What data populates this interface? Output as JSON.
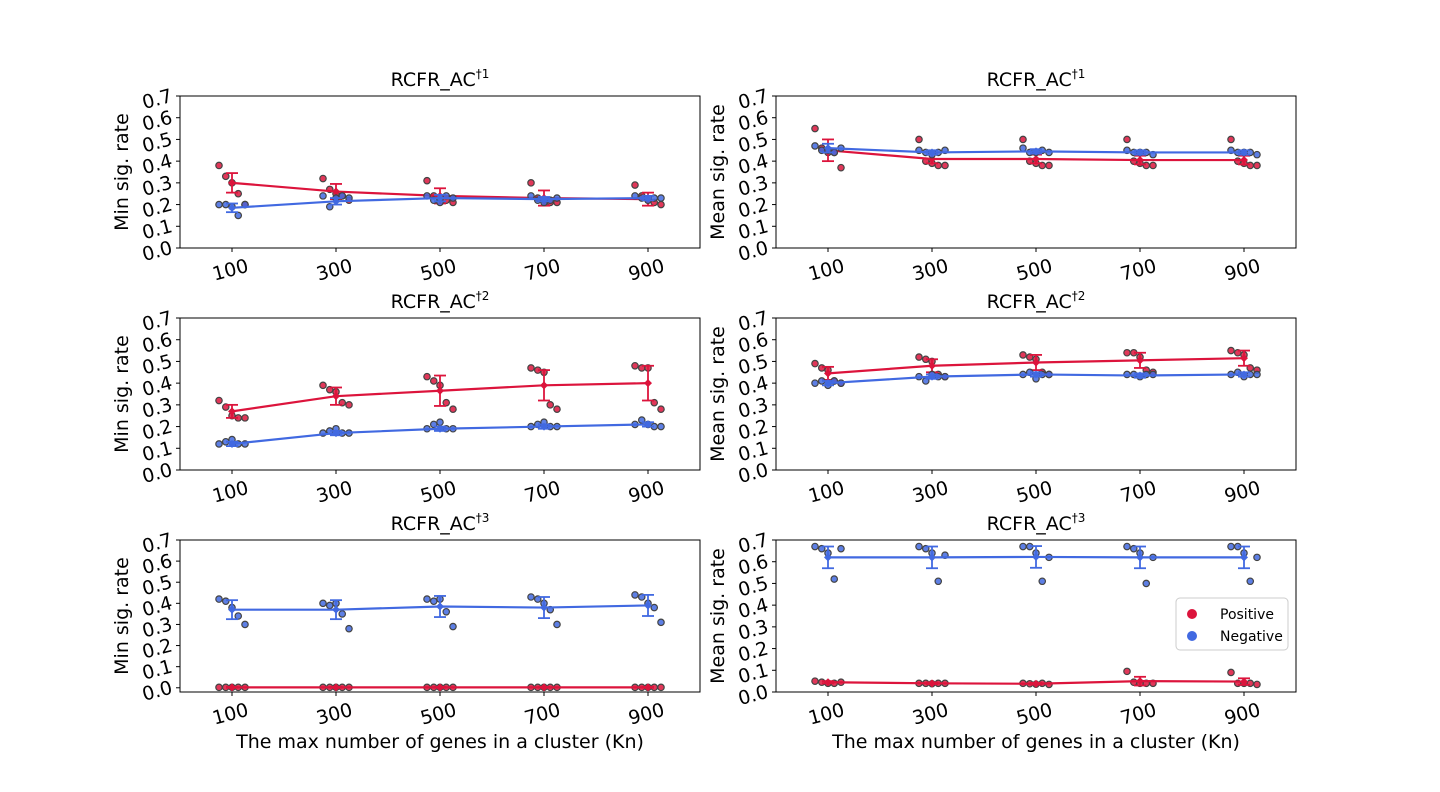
{
  "legend": {
    "items": [
      {
        "label": "Positive",
        "color": "#dc143c"
      },
      {
        "label": "Negative",
        "color": "#4169e1"
      }
    ]
  },
  "chart_data": [
    {
      "type": "scatter",
      "title": "RCFR_AC",
      "title_sup": "†1",
      "xlabel": "",
      "ylabel": "Min sig. rate",
      "categories": [
        "100",
        "300",
        "500",
        "700",
        "900"
      ],
      "ylim": [
        0.0,
        0.7
      ],
      "yticks": [
        "0.0",
        "0.1",
        "0.2",
        "0.3",
        "0.4",
        "0.5",
        "0.6",
        "0.7"
      ],
      "series": [
        {
          "name": "Positive",
          "color": "#dc143c",
          "mean": [
            0.3,
            0.26,
            0.24,
            0.23,
            0.225
          ],
          "err": [
            0.045,
            0.035,
            0.035,
            0.035,
            0.03
          ],
          "points": [
            [
              0.38,
              0.33,
              0.3,
              0.25,
              0.2
            ],
            [
              0.32,
              0.27,
              0.25,
              0.24,
              0.22
            ],
            [
              0.31,
              0.24,
              0.23,
              0.22,
              0.21
            ],
            [
              0.3,
              0.23,
              0.22,
              0.21,
              0.21
            ],
            [
              0.29,
              0.24,
              0.22,
              0.21,
              0.2
            ]
          ]
        },
        {
          "name": "Negative",
          "color": "#4169e1",
          "mean": [
            0.185,
            0.215,
            0.23,
            0.225,
            0.23
          ],
          "err": [
            0.02,
            0.015,
            0.015,
            0.01,
            0.01
          ],
          "points": [
            [
              0.2,
              0.2,
              0.19,
              0.15,
              0.2
            ],
            [
              0.24,
              0.19,
              0.23,
              0.24,
              0.23
            ],
            [
              0.24,
              0.22,
              0.21,
              0.24,
              0.23
            ],
            [
              0.24,
              0.22,
              0.21,
              0.22,
              0.23
            ],
            [
              0.24,
              0.23,
              0.22,
              0.23,
              0.23
            ]
          ]
        }
      ]
    },
    {
      "type": "scatter",
      "title": "RCFR_AC",
      "title_sup": "†1",
      "xlabel": "",
      "ylabel": "Mean sig. rate",
      "categories": [
        "100",
        "300",
        "500",
        "700",
        "900"
      ],
      "ylim": [
        0.0,
        0.7
      ],
      "yticks": [
        "0.0",
        "0.1",
        "0.2",
        "0.3",
        "0.4",
        "0.5",
        "0.6",
        "0.7"
      ],
      "series": [
        {
          "name": "Positive",
          "color": "#dc143c",
          "mean": [
            0.45,
            0.41,
            0.41,
            0.405,
            0.405
          ],
          "err": [
            0.05,
            0.02,
            0.02,
            0.02,
            0.02
          ],
          "points": [
            [
              0.55,
              0.46,
              0.44,
              0.44,
              0.37
            ],
            [
              0.5,
              0.4,
              0.39,
              0.38,
              0.38
            ],
            [
              0.5,
              0.4,
              0.39,
              0.38,
              0.38
            ],
            [
              0.5,
              0.4,
              0.39,
              0.38,
              0.38
            ],
            [
              0.5,
              0.4,
              0.39,
              0.38,
              0.38
            ]
          ]
        },
        {
          "name": "Negative",
          "color": "#4169e1",
          "mean": [
            0.46,
            0.44,
            0.445,
            0.44,
            0.44
          ],
          "err": [
            0.02,
            0.01,
            0.01,
            0.01,
            0.01
          ],
          "points": [
            [
              0.47,
              0.45,
              0.45,
              0.44,
              0.46
            ],
            [
              0.45,
              0.44,
              0.43,
              0.44,
              0.45
            ],
            [
              0.46,
              0.44,
              0.44,
              0.45,
              0.44
            ],
            [
              0.45,
              0.44,
              0.44,
              0.44,
              0.43
            ],
            [
              0.45,
              0.44,
              0.44,
              0.44,
              0.43
            ]
          ]
        }
      ]
    },
    {
      "type": "scatter",
      "title": "RCFR_AC",
      "title_sup": "†2",
      "xlabel": "",
      "ylabel": "Min sig. rate",
      "categories": [
        "100",
        "300",
        "500",
        "700",
        "900"
      ],
      "ylim": [
        0.0,
        0.7
      ],
      "yticks": [
        "0.0",
        "0.1",
        "0.2",
        "0.3",
        "0.4",
        "0.5",
        "0.6",
        "0.7"
      ],
      "series": [
        {
          "name": "Positive",
          "color": "#dc143c",
          "mean": [
            0.27,
            0.34,
            0.365,
            0.39,
            0.4
          ],
          "err": [
            0.03,
            0.04,
            0.07,
            0.07,
            0.08
          ],
          "points": [
            [
              0.32,
              0.29,
              0.25,
              0.24,
              0.24
            ],
            [
              0.39,
              0.37,
              0.36,
              0.31,
              0.3
            ],
            [
              0.43,
              0.41,
              0.39,
              0.31,
              0.28
            ],
            [
              0.47,
              0.46,
              0.45,
              0.3,
              0.28
            ],
            [
              0.48,
              0.47,
              0.47,
              0.31,
              0.28
            ]
          ]
        },
        {
          "name": "Negative",
          "color": "#4169e1",
          "mean": [
            0.12,
            0.17,
            0.19,
            0.2,
            0.21
          ],
          "err": [
            0.01,
            0.01,
            0.01,
            0.01,
            0.01
          ],
          "points": [
            [
              0.12,
              0.13,
              0.14,
              0.12,
              0.12
            ],
            [
              0.17,
              0.18,
              0.19,
              0.17,
              0.17
            ],
            [
              0.19,
              0.21,
              0.22,
              0.19,
              0.19
            ],
            [
              0.2,
              0.21,
              0.22,
              0.2,
              0.2
            ],
            [
              0.21,
              0.23,
              0.21,
              0.2,
              0.2
            ]
          ]
        }
      ]
    },
    {
      "type": "scatter",
      "title": "RCFR_AC",
      "title_sup": "†2",
      "xlabel": "",
      "ylabel": "Mean sig. rate",
      "categories": [
        "100",
        "300",
        "500",
        "700",
        "900"
      ],
      "ylim": [
        0.0,
        0.7
      ],
      "yticks": [
        "0.0",
        "0.1",
        "0.2",
        "0.3",
        "0.4",
        "0.5",
        "0.6",
        "0.7"
      ],
      "series": [
        {
          "name": "Positive",
          "color": "#dc143c",
          "mean": [
            0.445,
            0.48,
            0.495,
            0.505,
            0.515
          ],
          "err": [
            0.03,
            0.03,
            0.035,
            0.035,
            0.035
          ],
          "points": [
            [
              0.49,
              0.47,
              0.46,
              0.41,
              0.4
            ],
            [
              0.52,
              0.51,
              0.5,
              0.44,
              0.43
            ],
            [
              0.53,
              0.52,
              0.51,
              0.45,
              0.44
            ],
            [
              0.54,
              0.54,
              0.52,
              0.46,
              0.45
            ],
            [
              0.55,
              0.54,
              0.53,
              0.47,
              0.46
            ]
          ]
        },
        {
          "name": "Negative",
          "color": "#4169e1",
          "mean": [
            0.4,
            0.43,
            0.44,
            0.435,
            0.44
          ],
          "err": [
            0.01,
            0.01,
            0.01,
            0.01,
            0.01
          ],
          "points": [
            [
              0.4,
              0.41,
              0.39,
              0.41,
              0.4
            ],
            [
              0.43,
              0.41,
              0.44,
              0.43,
              0.43
            ],
            [
              0.44,
              0.45,
              0.42,
              0.44,
              0.44
            ],
            [
              0.44,
              0.44,
              0.43,
              0.44,
              0.44
            ],
            [
              0.44,
              0.45,
              0.43,
              0.44,
              0.44
            ]
          ]
        }
      ]
    },
    {
      "type": "scatter",
      "title": "RCFR_AC",
      "title_sup": "†3",
      "xlabel": "The max number of genes in a cluster (Kn)",
      "ylabel": "Min sig. rate",
      "categories": [
        "100",
        "300",
        "500",
        "700",
        "900"
      ],
      "ylim": [
        -0.02,
        0.7
      ],
      "yticks": [
        "0.0",
        "0.1",
        "0.2",
        "0.3",
        "0.4",
        "0.5",
        "0.6",
        "0.7"
      ],
      "series": [
        {
          "name": "Positive",
          "color": "#dc143c",
          "mean": [
            0.002,
            0.002,
            0.002,
            0.002,
            0.002
          ],
          "err": [
            0.002,
            0.002,
            0.002,
            0.002,
            0.002
          ],
          "points": [
            [
              0.002,
              0.002,
              0.002,
              0.002,
              0.002
            ],
            [
              0.002,
              0.002,
              0.002,
              0.002,
              0.002
            ],
            [
              0.002,
              0.002,
              0.002,
              0.002,
              0.002
            ],
            [
              0.002,
              0.002,
              0.002,
              0.002,
              0.002
            ],
            [
              0.002,
              0.002,
              0.002,
              0.002,
              0.002
            ]
          ]
        },
        {
          "name": "Negative",
          "color": "#4169e1",
          "mean": [
            0.37,
            0.37,
            0.385,
            0.38,
            0.39
          ],
          "err": [
            0.045,
            0.045,
            0.05,
            0.05,
            0.05
          ],
          "points": [
            [
              0.42,
              0.41,
              0.38,
              0.34,
              0.3
            ],
            [
              0.4,
              0.39,
              0.4,
              0.35,
              0.28
            ],
            [
              0.42,
              0.41,
              0.42,
              0.36,
              0.29
            ],
            [
              0.43,
              0.42,
              0.4,
              0.37,
              0.3
            ],
            [
              0.44,
              0.43,
              0.4,
              0.38,
              0.31
            ]
          ]
        }
      ]
    },
    {
      "type": "scatter",
      "title": "RCFR_AC",
      "title_sup": "†3",
      "xlabel": "The max number of genes in a cluster (Kn)",
      "ylabel": "Mean sig. rate",
      "categories": [
        "100",
        "300",
        "500",
        "700",
        "900"
      ],
      "ylim": [
        0.0,
        0.7
      ],
      "yticks": [
        "0.0",
        "0.1",
        "0.2",
        "0.3",
        "0.4",
        "0.5",
        "0.6",
        "0.7"
      ],
      "series": [
        {
          "name": "Positive",
          "color": "#dc143c",
          "mean": [
            0.045,
            0.04,
            0.038,
            0.05,
            0.048
          ],
          "err": [
            0.005,
            0.004,
            0.004,
            0.02,
            0.015
          ],
          "points": [
            [
              0.05,
              0.045,
              0.04,
              0.04,
              0.045
            ],
            [
              0.04,
              0.04,
              0.038,
              0.04,
              0.04
            ],
            [
              0.04,
              0.038,
              0.036,
              0.04,
              0.035
            ],
            [
              0.095,
              0.045,
              0.04,
              0.04,
              0.04
            ],
            [
              0.09,
              0.04,
              0.04,
              0.04,
              0.035
            ]
          ]
        },
        {
          "name": "Negative",
          "color": "#4169e1",
          "mean": [
            0.62,
            0.62,
            0.622,
            0.62,
            0.62
          ],
          "err": [
            0.05,
            0.05,
            0.05,
            0.05,
            0.05
          ],
          "points": [
            [
              0.67,
              0.66,
              0.64,
              0.52,
              0.66
            ],
            [
              0.67,
              0.66,
              0.64,
              0.51,
              0.63
            ],
            [
              0.67,
              0.67,
              0.64,
              0.51,
              0.62
            ],
            [
              0.67,
              0.66,
              0.64,
              0.5,
              0.62
            ],
            [
              0.67,
              0.67,
              0.64,
              0.51,
              0.62
            ]
          ]
        }
      ]
    }
  ]
}
